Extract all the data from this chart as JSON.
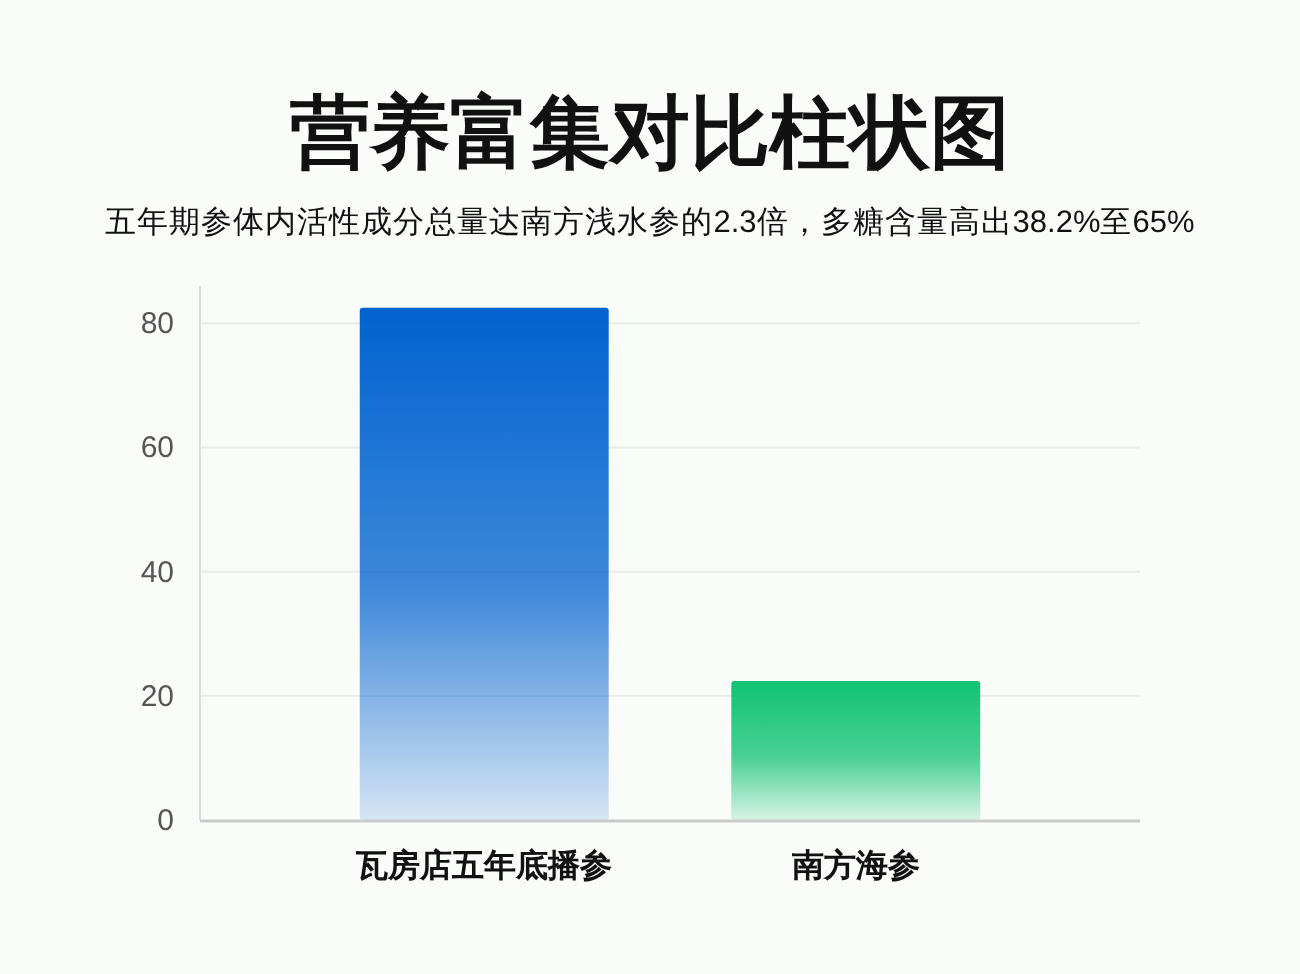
{
  "chart_data": {
    "type": "bar",
    "title": "营养富集对比柱状图",
    "subtitle": "五年期参体内活性成分总量达南方浅水参的2.3倍，多糖含量高出38.2%至65%",
    "categories": [
      "瓦房店五年底播参",
      "南方海参"
    ],
    "values": [
      82.5,
      22.4
    ],
    "colors": [
      "#0062d0",
      "#10c272"
    ],
    "ylim": [
      0,
      86
    ],
    "yticks": [
      0,
      20,
      40,
      60,
      80
    ],
    "grid": "y"
  }
}
